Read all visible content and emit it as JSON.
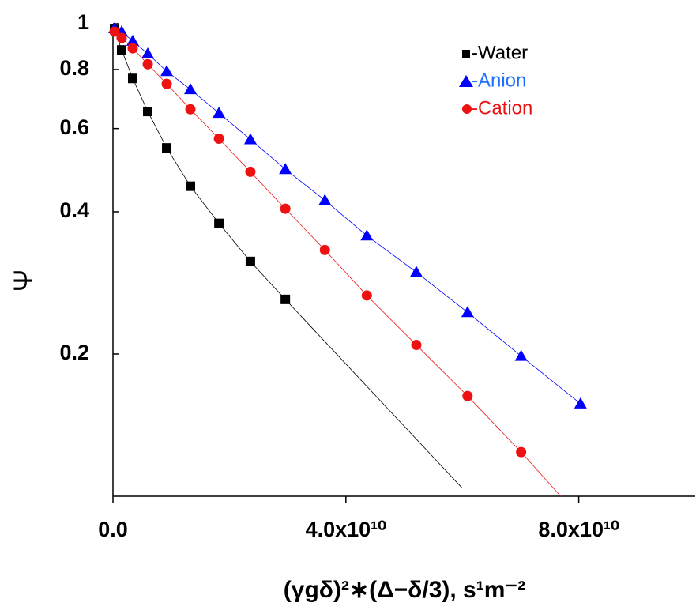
{
  "chart_data": {
    "type": "scatter",
    "x_label": "(γgδ)²∗(Δ−δ/3), s¹m⁻²",
    "y_label": "Ψ",
    "xlim": [
      0,
      100000000000
    ],
    "ylim": [
      0.1,
      1
    ],
    "y_log": true,
    "xticks": [
      {
        "value": 0,
        "label": "0.0"
      },
      {
        "value": 40000000000,
        "label": "4.0x10¹⁰"
      },
      {
        "value": 80000000000,
        "label": "8.0x10¹⁰"
      }
    ],
    "yticks": [
      0.2,
      0.4,
      0.6,
      0.8,
      1
    ],
    "legend": "top-right",
    "series": [
      {
        "name": "-Water",
        "color": "#000000",
        "marker": "square",
        "x": [
          270000000.0,
          1490000000.0,
          3390000000.0,
          5970000000.0,
          9230000000.0,
          13300000000.0,
          18200000000.0,
          23600000000.0,
          29600000000.0
        ],
        "values": [
          0.973,
          0.88,
          0.766,
          0.652,
          0.546,
          0.453,
          0.378,
          0.314,
          0.261
        ],
        "fit": {
          "x": [
            29600000000.0,
            60000000000.0
          ],
          "values": [
            0.261,
            0.104
          ]
        }
      },
      {
        "name": "-Anion",
        "color": "#0000ff",
        "text_color": "#1f6fff",
        "marker": "triangle",
        "x": [
          270000000.0,
          1490000000.0,
          3390000000.0,
          5970000000.0,
          9230000000.0,
          13300000000.0,
          18200000000.0,
          23600000000.0,
          29600000000.0,
          36400000000.0,
          43600000000.0,
          52100000000.0,
          60900000000.0,
          70100000000.0,
          80300000000.0
        ],
        "values": [
          0.977,
          0.962,
          0.919,
          0.864,
          0.793,
          0.726,
          0.647,
          0.569,
          0.492,
          0.423,
          0.356,
          0.298,
          0.245,
          0.198,
          0.157
        ]
      },
      {
        "name": "-Cation",
        "color": "#ee1111",
        "text_color": "#ee1111",
        "marker": "circle",
        "x": [
          270000000.0,
          1490000000.0,
          3390000000.0,
          5970000000.0,
          9230000000.0,
          13300000000.0,
          18200000000.0,
          23600000000.0,
          29600000000.0,
          36400000000.0,
          43600000000.0,
          52100000000.0,
          60900000000.0,
          70100000000.0
        ],
        "values": [
          0.962,
          0.933,
          0.887,
          0.821,
          0.746,
          0.659,
          0.571,
          0.486,
          0.406,
          0.332,
          0.266,
          0.209,
          0.163,
          0.124
        ],
        "fit": {
          "x": [
            70100000000.0,
            76900000000.0
          ],
          "values": [
            0.124,
            0.1
          ]
        }
      }
    ]
  }
}
